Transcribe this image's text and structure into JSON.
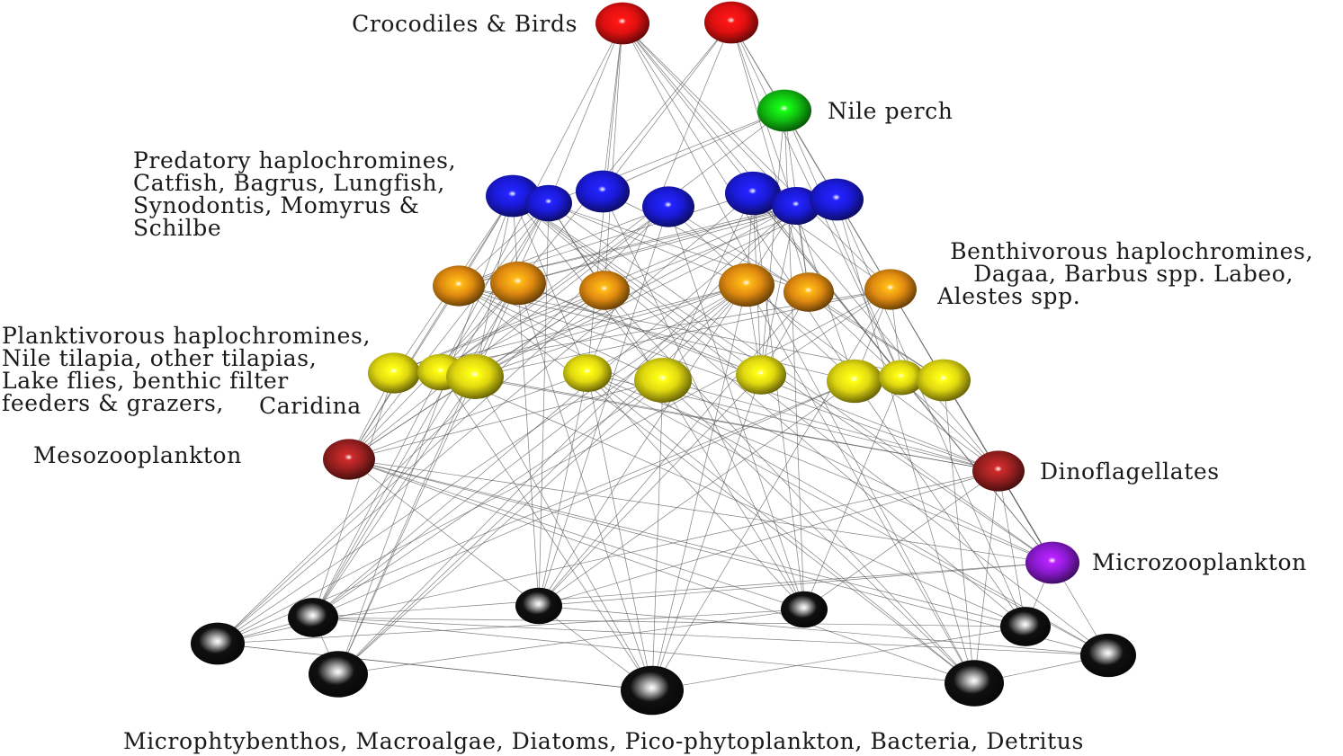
{
  "labels": {
    "top_predators": "Crocodiles & Birds",
    "nile_perch": "Nile perch",
    "predatory": [
      "Predatory haplochromines,",
      "Catfish, Bagrus, Lungfish,",
      "Synodontis, Momyrus &",
      "Schilbe"
    ],
    "benthivorous": [
      "Benthivorous haplochromines,",
      "Dagaa, Barbus spp. Labeo,",
      "Alestes spp."
    ],
    "planktivorous": [
      "Planktivorous haplochromines,",
      "Nile tilapia, other tilapias,",
      "Lake flies, benthic filter",
      "feeders & grazers,"
    ],
    "caridina": "Caridina",
    "mesozooplankton": "Mesozooplankton",
    "dinoflagellates": "Dinoflagellates",
    "microzooplankton": "Microzooplankton",
    "basal": "Microphtybenthos, Macroalgae, Diatoms, Pico-phytoplankton, Bacteria, Detritus"
  },
  "colors": {
    "top_predators": "#e01010",
    "nile_perch": "#10c010",
    "predatory": "#1a1ad8",
    "benthivorous": "#e08a10",
    "planktivorous": "#e0d810",
    "mesozooplankton": "#9a2020",
    "dinoflagellates": "#9a2020",
    "microzooplankton": "#8a1ad0",
    "basal": "#101010",
    "edge": "#555555"
  }
}
